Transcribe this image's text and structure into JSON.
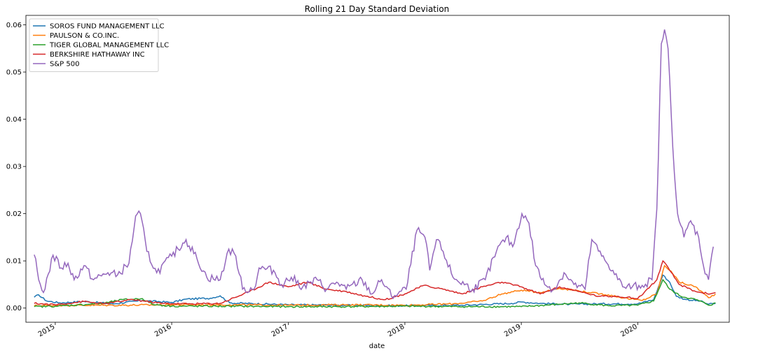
{
  "chart_data": {
    "type": "line",
    "title": "Rolling 21 Day Standard Deviation",
    "xlabel": "date",
    "ylabel": "",
    "xlim": [
      "2014-10-01",
      "2020-10-14"
    ],
    "ylim": [
      -0.003,
      0.062
    ],
    "x_ticks": [
      {
        "date": "2015-01-01",
        "label": "2015"
      },
      {
        "date": "2016-01-01",
        "label": "2016"
      },
      {
        "date": "2017-01-01",
        "label": "2017"
      },
      {
        "date": "2018-01-01",
        "label": "2018"
      },
      {
        "date": "2019-01-01",
        "label": "2019"
      },
      {
        "date": "2020-01-01",
        "label": "2020"
      }
    ],
    "y_ticks": [
      {
        "value": 0.0,
        "label": "0.00"
      },
      {
        "value": 0.01,
        "label": "0.01"
      },
      {
        "value": 0.02,
        "label": "0.02"
      },
      {
        "value": 0.03,
        "label": "0.03"
      },
      {
        "value": 0.04,
        "label": "0.04"
      },
      {
        "value": 0.05,
        "label": "0.05"
      },
      {
        "value": 0.06,
        "label": "0.06"
      }
    ],
    "grid": false,
    "legend_position": "top-left",
    "series": [
      {
        "name": "SOROS FUND MANAGEMENT LLC",
        "color": "#1f77b4",
        "points": [
          [
            "2014-10-27",
            0.0023
          ],
          [
            "2014-11-10",
            0.0028
          ],
          [
            "2014-12-05",
            0.0015
          ],
          [
            "2015-01-15",
            0.0011
          ],
          [
            "2015-04-01",
            0.0014
          ],
          [
            "2015-07-01",
            0.0009
          ],
          [
            "2015-10-01",
            0.0016
          ],
          [
            "2016-01-01",
            0.0012
          ],
          [
            "2016-02-15",
            0.0019
          ],
          [
            "2016-05-01",
            0.0021
          ],
          [
            "2016-06-01",
            0.0026
          ],
          [
            "2016-07-01",
            0.0011
          ],
          [
            "2017-01-01",
            0.0007
          ],
          [
            "2017-07-01",
            0.0006
          ],
          [
            "2018-01-01",
            0.0005
          ],
          [
            "2018-07-01",
            0.0006
          ],
          [
            "2018-12-01",
            0.001
          ],
          [
            "2019-01-01",
            0.0013
          ],
          [
            "2019-03-01",
            0.001
          ],
          [
            "2019-06-01",
            0.0008
          ],
          [
            "2019-09-01",
            0.0009
          ],
          [
            "2020-01-01",
            0.0009
          ],
          [
            "2020-02-20",
            0.0018
          ],
          [
            "2020-03-20",
            0.007
          ],
          [
            "2020-04-10",
            0.0055
          ],
          [
            "2020-05-01",
            0.0025
          ],
          [
            "2020-06-01",
            0.0018
          ],
          [
            "2020-07-15",
            0.0015
          ],
          [
            "2020-08-10",
            0.0008
          ],
          [
            "2020-09-01",
            0.001
          ]
        ]
      },
      {
        "name": "PAULSON & CO.INC.",
        "color": "#ff7f0e",
        "points": [
          [
            "2014-10-27",
            0.0005
          ],
          [
            "2015-01-01",
            0.0006
          ],
          [
            "2015-07-01",
            0.0006
          ],
          [
            "2016-01-01",
            0.0007
          ],
          [
            "2016-07-01",
            0.0007
          ],
          [
            "2017-01-01",
            0.0006
          ],
          [
            "2017-07-01",
            0.0007
          ],
          [
            "2018-01-01",
            0.0006
          ],
          [
            "2018-06-01",
            0.0009
          ],
          [
            "2018-09-01",
            0.0015
          ],
          [
            "2018-11-01",
            0.003
          ],
          [
            "2019-01-01",
            0.0038
          ],
          [
            "2019-03-01",
            0.0033
          ],
          [
            "2019-05-01",
            0.0042
          ],
          [
            "2019-06-15",
            0.0038
          ],
          [
            "2019-08-01",
            0.0033
          ],
          [
            "2019-10-01",
            0.0028
          ],
          [
            "2019-12-01",
            0.002
          ],
          [
            "2020-01-15",
            0.0016
          ],
          [
            "2020-03-01",
            0.003
          ],
          [
            "2020-03-25",
            0.009
          ],
          [
            "2020-04-15",
            0.0078
          ],
          [
            "2020-05-10",
            0.0055
          ],
          [
            "2020-07-01",
            0.0045
          ],
          [
            "2020-08-10",
            0.0022
          ],
          [
            "2020-09-01",
            0.003
          ]
        ]
      },
      {
        "name": "TIGER GLOBAL MANAGEMENT LLC",
        "color": "#2ca02c",
        "points": [
          [
            "2014-10-27",
            0.0003
          ],
          [
            "2015-01-01",
            0.0004
          ],
          [
            "2015-06-01",
            0.001
          ],
          [
            "2015-08-01",
            0.0018
          ],
          [
            "2015-10-01",
            0.002
          ],
          [
            "2015-11-01",
            0.0008
          ],
          [
            "2016-01-01",
            0.0004
          ],
          [
            "2016-07-01",
            0.0004
          ],
          [
            "2017-01-01",
            0.0003
          ],
          [
            "2017-07-01",
            0.0003
          ],
          [
            "2018-01-01",
            0.0004
          ],
          [
            "2018-07-01",
            0.0003
          ],
          [
            "2019-01-01",
            0.0003
          ],
          [
            "2019-05-01",
            0.0008
          ],
          [
            "2019-07-01",
            0.0011
          ],
          [
            "2019-10-01",
            0.0005
          ],
          [
            "2020-01-01",
            0.0006
          ],
          [
            "2020-02-20",
            0.0015
          ],
          [
            "2020-03-20",
            0.006
          ],
          [
            "2020-04-10",
            0.004
          ],
          [
            "2020-05-15",
            0.0025
          ],
          [
            "2020-07-01",
            0.0018
          ],
          [
            "2020-08-15",
            0.0006
          ],
          [
            "2020-09-01",
            0.0011
          ]
        ]
      },
      {
        "name": "BERKSHIRE HATHAWAY INC",
        "color": "#d62728",
        "points": [
          [
            "2014-10-27",
            0.001
          ],
          [
            "2015-01-01",
            0.0007
          ],
          [
            "2015-04-01",
            0.0014
          ],
          [
            "2015-06-01",
            0.0009
          ],
          [
            "2015-09-01",
            0.0018
          ],
          [
            "2015-12-01",
            0.001
          ],
          [
            "2016-03-01",
            0.0009
          ],
          [
            "2016-06-01",
            0.001
          ],
          [
            "2016-09-01",
            0.0035
          ],
          [
            "2016-11-01",
            0.0055
          ],
          [
            "2017-01-01",
            0.0045
          ],
          [
            "2017-03-01",
            0.0055
          ],
          [
            "2017-05-01",
            0.004
          ],
          [
            "2017-07-01",
            0.0035
          ],
          [
            "2017-09-01",
            0.0025
          ],
          [
            "2017-11-01",
            0.0018
          ],
          [
            "2018-01-01",
            0.003
          ],
          [
            "2018-03-01",
            0.0048
          ],
          [
            "2018-05-01",
            0.004
          ],
          [
            "2018-07-01",
            0.003
          ],
          [
            "2018-09-01",
            0.0045
          ],
          [
            "2018-11-01",
            0.0055
          ],
          [
            "2019-01-01",
            0.0045
          ],
          [
            "2019-03-01",
            0.003
          ],
          [
            "2019-05-01",
            0.0045
          ],
          [
            "2019-07-01",
            0.0035
          ],
          [
            "2019-09-01",
            0.0025
          ],
          [
            "2019-11-01",
            0.0025
          ],
          [
            "2020-01-01",
            0.002
          ],
          [
            "2020-03-01",
            0.006
          ],
          [
            "2020-03-20",
            0.01
          ],
          [
            "2020-04-10",
            0.008
          ],
          [
            "2020-05-10",
            0.005
          ],
          [
            "2020-07-01",
            0.0035
          ],
          [
            "2020-08-15",
            0.003
          ],
          [
            "2020-09-01",
            0.0033
          ]
        ]
      },
      {
        "name": "S&P 500",
        "color": "#9467bd",
        "points": [
          [
            "2014-10-27",
            0.0113
          ],
          [
            "2014-11-10",
            0.006
          ],
          [
            "2014-11-25",
            0.0033
          ],
          [
            "2014-12-10",
            0.0072
          ],
          [
            "2014-12-25",
            0.0112
          ],
          [
            "2015-01-20",
            0.0085
          ],
          [
            "2015-02-10",
            0.0095
          ],
          [
            "2015-03-01",
            0.006
          ],
          [
            "2015-04-01",
            0.009
          ],
          [
            "2015-05-01",
            0.006
          ],
          [
            "2015-06-15",
            0.0075
          ],
          [
            "2015-07-15",
            0.007
          ],
          [
            "2015-08-20",
            0.0095
          ],
          [
            "2015-09-10",
            0.0195
          ],
          [
            "2015-09-25",
            0.02
          ],
          [
            "2015-10-15",
            0.012
          ],
          [
            "2015-11-15",
            0.0075
          ],
          [
            "2016-01-01",
            0.011
          ],
          [
            "2016-02-15",
            0.0145
          ],
          [
            "2016-03-20",
            0.0105
          ],
          [
            "2016-04-20",
            0.0065
          ],
          [
            "2016-06-01",
            0.006
          ],
          [
            "2016-06-28",
            0.0125
          ],
          [
            "2016-07-20",
            0.011
          ],
          [
            "2016-08-10",
            0.004
          ],
          [
            "2016-09-15",
            0.004
          ],
          [
            "2016-10-01",
            0.0085
          ],
          [
            "2016-11-15",
            0.008
          ],
          [
            "2016-12-10",
            0.005
          ],
          [
            "2017-01-10",
            0.0065
          ],
          [
            "2017-02-15",
            0.0045
          ],
          [
            "2017-04-01",
            0.006
          ],
          [
            "2017-05-01",
            0.004
          ],
          [
            "2017-06-01",
            0.0055
          ],
          [
            "2017-07-01",
            0.004
          ],
          [
            "2017-08-20",
            0.006
          ],
          [
            "2017-09-20",
            0.003
          ],
          [
            "2017-10-20",
            0.006
          ],
          [
            "2017-11-20",
            0.0025
          ],
          [
            "2018-01-05",
            0.004
          ],
          [
            "2018-02-08",
            0.0165
          ],
          [
            "2018-03-05",
            0.015
          ],
          [
            "2018-03-20",
            0.008
          ],
          [
            "2018-04-10",
            0.0145
          ],
          [
            "2018-05-01",
            0.012
          ],
          [
            "2018-06-01",
            0.0065
          ],
          [
            "2018-08-01",
            0.004
          ],
          [
            "2018-09-10",
            0.006
          ],
          [
            "2018-10-15",
            0.012
          ],
          [
            "2018-11-15",
            0.015
          ],
          [
            "2018-12-05",
            0.013
          ],
          [
            "2019-01-03",
            0.02
          ],
          [
            "2019-01-25",
            0.018
          ],
          [
            "2019-02-15",
            0.009
          ],
          [
            "2019-03-15",
            0.005
          ],
          [
            "2019-04-15",
            0.004
          ],
          [
            "2019-05-15",
            0.0075
          ],
          [
            "2019-06-15",
            0.005
          ],
          [
            "2019-07-20",
            0.004
          ],
          [
            "2019-08-10",
            0.0145
          ],
          [
            "2019-09-10",
            0.011
          ],
          [
            "2019-10-15",
            0.008
          ],
          [
            "2019-11-15",
            0.0045
          ],
          [
            "2019-12-15",
            0.0045
          ],
          [
            "2020-01-15",
            0.0048
          ],
          [
            "2020-02-15",
            0.006
          ],
          [
            "2020-03-01",
            0.021
          ],
          [
            "2020-03-15",
            0.056
          ],
          [
            "2020-03-25",
            0.059
          ],
          [
            "2020-04-05",
            0.055
          ],
          [
            "2020-04-20",
            0.034
          ],
          [
            "2020-05-05",
            0.02
          ],
          [
            "2020-05-25",
            0.015
          ],
          [
            "2020-06-15",
            0.0185
          ],
          [
            "2020-07-10",
            0.015
          ],
          [
            "2020-07-25",
            0.009
          ],
          [
            "2020-08-10",
            0.006
          ],
          [
            "2020-08-25",
            0.013
          ]
        ]
      }
    ]
  }
}
